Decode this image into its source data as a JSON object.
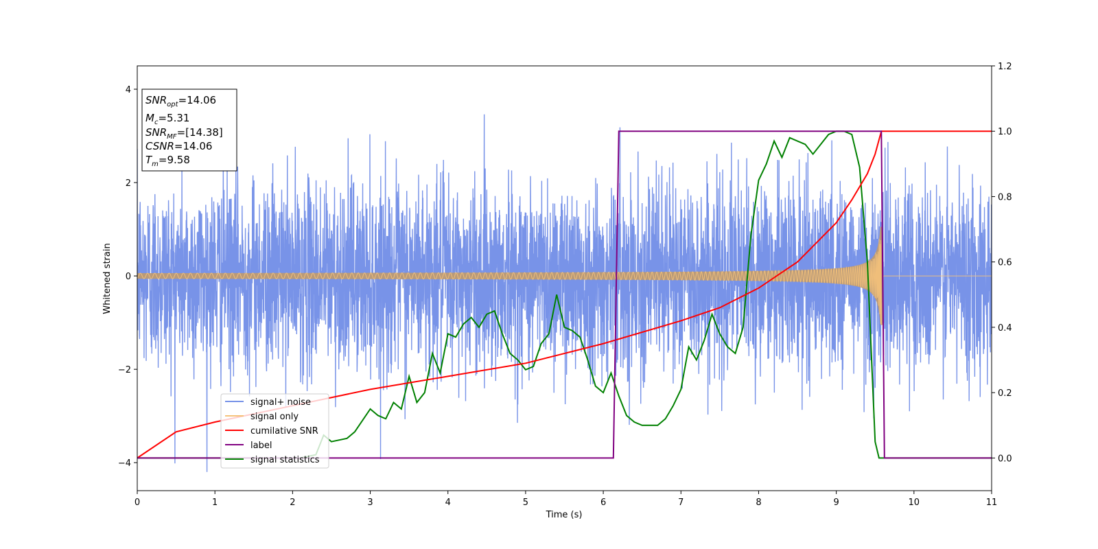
{
  "chart_data": {
    "type": "line",
    "xlabel": "Time (s)",
    "ylabel": "Whitened strain",
    "xlim": [
      0,
      11
    ],
    "ylim_left": [
      -4.6,
      4.5
    ],
    "ylim_right": [
      -0.1,
      1.2
    ],
    "x_ticks": [
      "0",
      "1",
      "2",
      "3",
      "4",
      "5",
      "6",
      "7",
      "8",
      "9",
      "10",
      "11"
    ],
    "y_ticks_left": [
      "−4",
      "−2",
      "0",
      "2",
      "4"
    ],
    "y_ticks_right": [
      "0.0",
      "0.2",
      "0.4",
      "0.6",
      "0.8",
      "1.0",
      "1.2"
    ],
    "grid": false,
    "legend_position": "lower-left",
    "info_box": {
      "snr_opt": "=14.06",
      "mc": "=5.31",
      "snr_mf": "=[14.38]",
      "csnr": "=14.06",
      "tm": "=9.58"
    },
    "series": [
      {
        "name": "signal+ noise",
        "axis": "left",
        "color": "#7893e8",
        "description_values": {
          "noise_sigma": 1.0,
          "t_range": [
            0,
            11
          ]
        }
      },
      {
        "name": "signal only",
        "axis": "left",
        "color": "#f5c27a",
        "chirp": {
          "start_amplitude": 0.06,
          "peak_amplitude": 1.05,
          "merger_time": 9.58,
          "end_time": 9.6
        }
      },
      {
        "name": "cumilative SNR",
        "axis": "right",
        "color": "#ff0000",
        "x": [
          0,
          0.5,
          1,
          2,
          3,
          4,
          5,
          6,
          7,
          7.5,
          8,
          8.5,
          9,
          9.2,
          9.4,
          9.5,
          9.58,
          9.6,
          11
        ],
        "y": [
          0.0,
          0.08,
          0.11,
          0.16,
          0.21,
          0.25,
          0.29,
          0.35,
          0.42,
          0.46,
          0.52,
          0.6,
          0.72,
          0.79,
          0.87,
          0.93,
          1.0,
          1.0,
          1.0
        ]
      },
      {
        "name": "label",
        "axis": "right",
        "color": "#800080",
        "x": [
          0,
          6.13,
          6.2,
          9.58,
          9.62,
          11
        ],
        "y": [
          0.0,
          0.0,
          1.0,
          1.0,
          0.0,
          0.0
        ]
      },
      {
        "name": "signal statistics",
        "axis": "right",
        "color": "#008000",
        "x": [
          0,
          2.1,
          2.3,
          2.4,
          2.5,
          2.7,
          2.8,
          3.0,
          3.1,
          3.2,
          3.3,
          3.4,
          3.5,
          3.6,
          3.7,
          3.8,
          3.9,
          4.0,
          4.1,
          4.2,
          4.3,
          4.4,
          4.5,
          4.6,
          4.7,
          4.8,
          4.9,
          5.0,
          5.1,
          5.2,
          5.3,
          5.4,
          5.5,
          5.6,
          5.7,
          5.8,
          5.9,
          6.0,
          6.1,
          6.2,
          6.3,
          6.4,
          6.5,
          6.6,
          6.7,
          6.8,
          6.9,
          7.0,
          7.1,
          7.2,
          7.3,
          7.4,
          7.5,
          7.6,
          7.7,
          7.8,
          7.9,
          8.0,
          8.1,
          8.2,
          8.3,
          8.4,
          8.5,
          8.6,
          8.7,
          8.8,
          8.9,
          9.0,
          9.1,
          9.2,
          9.3,
          9.4,
          9.5,
          9.55,
          9.6,
          11
        ],
        "y": [
          0.0,
          0.0,
          0.01,
          0.07,
          0.05,
          0.06,
          0.08,
          0.15,
          0.13,
          0.12,
          0.17,
          0.15,
          0.25,
          0.17,
          0.2,
          0.32,
          0.26,
          0.38,
          0.37,
          0.41,
          0.43,
          0.4,
          0.44,
          0.45,
          0.38,
          0.32,
          0.3,
          0.27,
          0.28,
          0.35,
          0.38,
          0.5,
          0.4,
          0.39,
          0.37,
          0.3,
          0.22,
          0.2,
          0.26,
          0.19,
          0.13,
          0.11,
          0.1,
          0.1,
          0.1,
          0.12,
          0.16,
          0.21,
          0.34,
          0.3,
          0.36,
          0.44,
          0.38,
          0.34,
          0.32,
          0.4,
          0.68,
          0.85,
          0.9,
          0.97,
          0.92,
          0.98,
          0.97,
          0.96,
          0.93,
          0.96,
          0.99,
          1.0,
          1.0,
          0.99,
          0.89,
          0.6,
          0.05,
          0.0,
          0.0,
          0.0
        ]
      }
    ]
  }
}
